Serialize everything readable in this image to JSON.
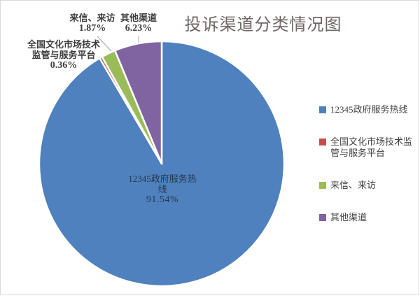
{
  "chart_data": {
    "type": "pie",
    "title": "投诉渠道分类情况图",
    "categories": [
      "12345政府服务热线",
      "全国文化市场技术监管与服务平台",
      "来信、来访",
      "其他渠道"
    ],
    "values": [
      91.54,
      0.36,
      1.87,
      6.23
    ],
    "unit": "%",
    "colors": [
      "#4E81BD",
      "#C0504D",
      "#9BBB59",
      "#8064A2"
    ],
    "start_angle_deg": 0,
    "direction": "clockwise",
    "legend_position": "right",
    "slice_border_color": "#ffffff"
  },
  "labels": {
    "inside_blue": {
      "line1": "12345政府服务热",
      "line2": "线",
      "pct": "91.54%"
    },
    "callout_letters": {
      "name": "来信、来访",
      "pct": "1.87%"
    },
    "callout_other": {
      "name": "其他渠道",
      "pct": "6.23%"
    },
    "callout_platform": {
      "line1": "全国文化市场技术",
      "line2": "监管与服务平台",
      "pct": "0.36%"
    }
  },
  "legend": {
    "items": [
      {
        "label": "12345政府服务热线",
        "color": "#4E81BD"
      },
      {
        "label": "全国文化市场技术监管与服务平台",
        "color": "#C0504D"
      },
      {
        "label": "来信、来访",
        "color": "#9BBB59"
      },
      {
        "label": "其他渠道",
        "color": "#8064A2"
      }
    ]
  }
}
